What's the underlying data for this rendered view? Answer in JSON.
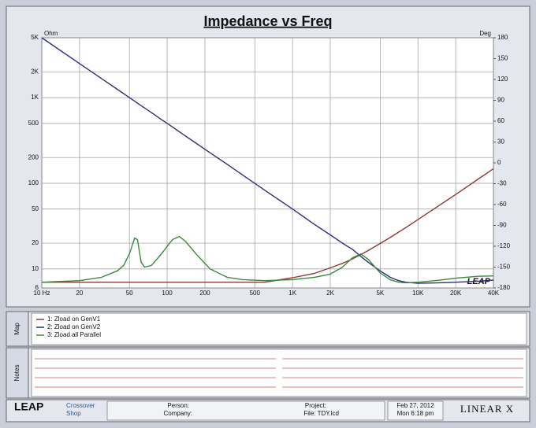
{
  "chart_data": {
    "type": "line",
    "title": "Impedance vs Freq",
    "y_label": "Ohm",
    "y2_label": "Deg",
    "x": [
      10,
      20,
      30,
      40,
      45,
      50,
      55,
      58,
      62,
      66,
      75,
      90,
      110,
      125,
      140,
      170,
      220,
      300,
      400,
      600,
      1000,
      1500,
      2000,
      2500,
      3000,
      3500,
      4000,
      5000,
      6000,
      7000,
      8000,
      10000,
      15000,
      20000,
      30000,
      40000
    ],
    "series": [
      {
        "name": "1: Zload on GenV1",
        "color": "#8b3a3a",
        "values": [
          7,
          7,
          7,
          7,
          7,
          7,
          7,
          7,
          7,
          7,
          7,
          7,
          7,
          7,
          7,
          7,
          7,
          7,
          7,
          7,
          7.9,
          8.9,
          10.3,
          11.6,
          13.1,
          14.7,
          16.4,
          19.8,
          23.3,
          26.9,
          30.4,
          37.7,
          56,
          74,
          111,
          148
        ]
      },
      {
        "name": "2: Zload on GenV2",
        "color": "#2e2e7a",
        "values": [
          5000,
          2500,
          1667,
          1250,
          1111,
          1000,
          909,
          862,
          806,
          758,
          667,
          556,
          455,
          400,
          357,
          294,
          227,
          167,
          125,
          83,
          50,
          33,
          25,
          20,
          17,
          14,
          12,
          9.5,
          8,
          7.3,
          7,
          6.8,
          6.9,
          7,
          7.2,
          7.4
        ]
      },
      {
        "name": "3: Zload all Parallel",
        "color": "#3a8a3a",
        "values": [
          7,
          7.3,
          8,
          9.5,
          11,
          15,
          23,
          22,
          12,
          10.5,
          11,
          15,
          22,
          24,
          21,
          15,
          10,
          8,
          7.5,
          7.3,
          7.5,
          8,
          8.7,
          10.5,
          13.5,
          15,
          13,
          9,
          7.5,
          7,
          6.9,
          7,
          7.4,
          7.8,
          8.2,
          8.3
        ]
      }
    ],
    "x_scale": "log",
    "y_scale": "log",
    "grid": true,
    "xlim": [
      10,
      40000
    ],
    "xticks": [
      {
        "value": 10,
        "label": "10 Hz"
      },
      20,
      50,
      100,
      200,
      500,
      {
        "value": 1000,
        "label": "1K"
      },
      {
        "value": 2000,
        "label": "2K"
      },
      {
        "value": 5000,
        "label": "5K"
      },
      {
        "value": 10000,
        "label": "10K"
      },
      {
        "value": 20000,
        "label": "20K"
      },
      {
        "value": 40000,
        "label": "40K"
      }
    ],
    "ylim": [
      6,
      5000
    ],
    "yticks": [
      {
        "value": 5000,
        "label": "5K"
      },
      {
        "value": 2000,
        "label": "2K"
      },
      {
        "value": 1000,
        "label": "1K"
      },
      500,
      200,
      100,
      50,
      20,
      10,
      6
    ],
    "y2lim": [
      -180,
      180
    ],
    "y2ticks": [
      180,
      150,
      120,
      90,
      60,
      30,
      0,
      -30,
      -60,
      -90,
      -120,
      -150,
      -180
    ],
    "plot_logo": "LEAP"
  },
  "map_label": "Map",
  "notes_label": "Notes",
  "footer": {
    "logo": "LEAP",
    "app_line1": "Crossover",
    "app_line2": "Shop",
    "person": "Person:",
    "company": "Company:",
    "project": "Project:",
    "file": "File: TDY.lcd",
    "date": "Feb 27, 2012",
    "time": "Mon  6:18 pm",
    "brand": "LINEAR X"
  }
}
